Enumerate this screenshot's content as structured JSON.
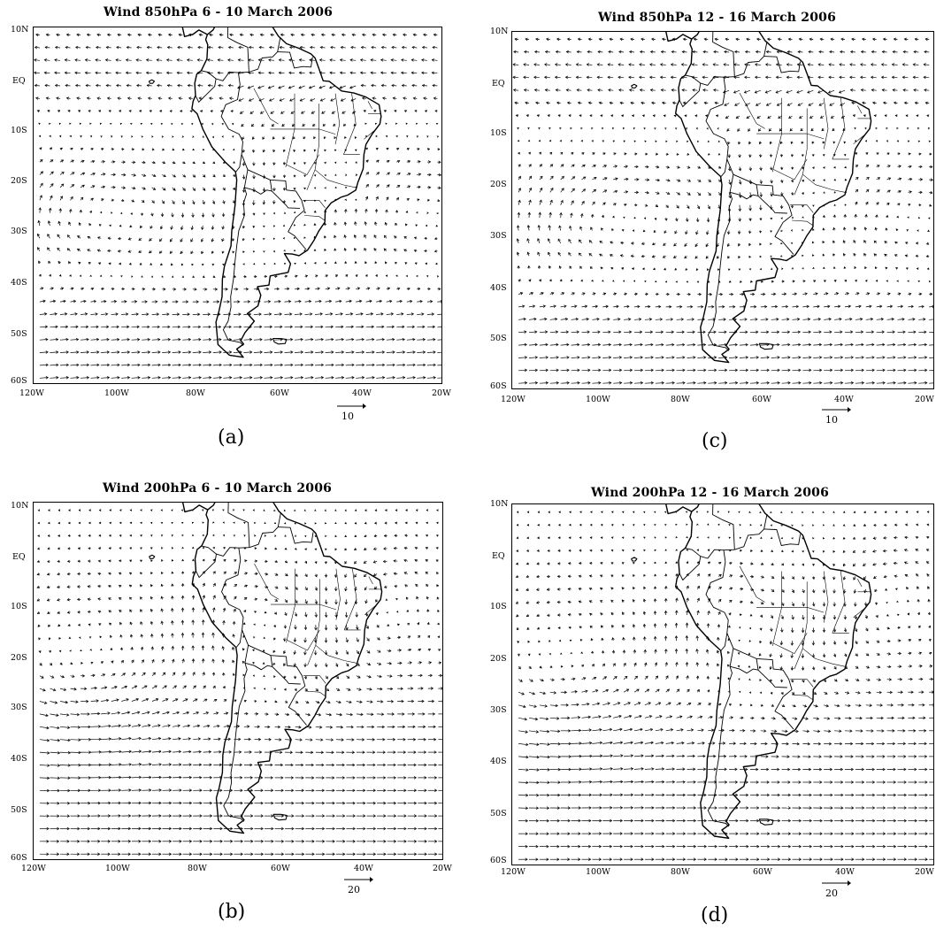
{
  "panels": [
    {
      "id": "a",
      "title": "Wind 850hPa 6 - 10 March 2006",
      "label": "(a)",
      "ref_vector": "10",
      "level": "850",
      "lat_ticks": [
        "10N",
        "EQ",
        "10S",
        "20S",
        "30S",
        "40S",
        "50S",
        "60S"
      ],
      "lon_ticks": [
        "120W",
        "100W",
        "80W",
        "60W",
        "40W",
        "20W"
      ]
    },
    {
      "id": "c",
      "title": "Wind 850hPa 12 - 16 March 2006",
      "label": "(c)",
      "ref_vector": "10",
      "level": "850",
      "lat_ticks": [
        "10N",
        "EQ",
        "10S",
        "20S",
        "30S",
        "40S",
        "50S",
        "60S"
      ],
      "lon_ticks": [
        "120W",
        "100W",
        "80W",
        "60W",
        "40W",
        "20W"
      ]
    },
    {
      "id": "b",
      "title": "Wind 200hPa 6 - 10 March 2006",
      "label": "(b)",
      "ref_vector": "20",
      "level": "200",
      "lat_ticks": [
        "10N",
        "EQ",
        "10S",
        "20S",
        "30S",
        "40S",
        "50S",
        "60S"
      ],
      "lon_ticks": [
        "120W",
        "100W",
        "80W",
        "60W",
        "40W",
        "20W"
      ]
    },
    {
      "id": "d",
      "title": "Wind 200hPa 12 - 16 March 2006",
      "label": "(d)",
      "ref_vector": "20",
      "level": "200",
      "lat_ticks": [
        "10N",
        "EQ",
        "10S",
        "20S",
        "30S",
        "40S",
        "50S",
        "60S"
      ],
      "lon_ticks": [
        "120W",
        "100W",
        "80W",
        "60W",
        "40W",
        "20W"
      ]
    }
  ]
}
